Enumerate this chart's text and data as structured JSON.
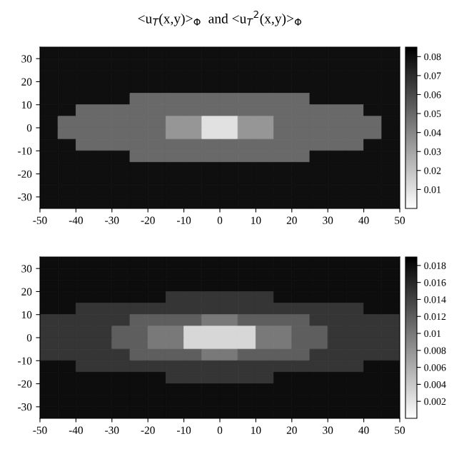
{
  "chart_data": [
    {
      "type": "heatmap",
      "title": "<u$_{T}$(x,y)>$_{Φ}$  and <u$_{T}$$^{2}$(x,y)>$_{Φ}$",
      "xlim": [
        -50,
        50
      ],
      "ylim": [
        -35,
        35
      ],
      "xticks": [
        -50,
        -40,
        -30,
        -20,
        -10,
        0,
        10,
        20,
        30,
        40,
        50
      ],
      "yticks": [
        -30,
        -20,
        -10,
        0,
        10,
        20,
        30
      ],
      "clim": [
        0,
        0.085
      ],
      "cticks": [
        0.01,
        0.02,
        0.03,
        0.04,
        0.05,
        0.06,
        0.07,
        0.08
      ],
      "cells": [
        [
          0.08,
          0.08,
          0.08,
          0.08,
          0.08,
          0.08,
          0.08,
          0.08,
          0.08,
          0.08,
          0.08,
          0.08,
          0.08,
          0.08,
          0.08,
          0.08,
          0.08,
          0.08,
          0.08,
          0.08
        ],
        [
          0.08,
          0.08,
          0.08,
          0.08,
          0.08,
          0.08,
          0.08,
          0.08,
          0.08,
          0.08,
          0.08,
          0.08,
          0.08,
          0.08,
          0.08,
          0.08,
          0.08,
          0.08,
          0.08,
          0.08
        ],
        [
          0.08,
          0.08,
          0.08,
          0.08,
          0.08,
          0.08,
          0.08,
          0.08,
          0.08,
          0.08,
          0.08,
          0.08,
          0.08,
          0.08,
          0.08,
          0.08,
          0.08,
          0.08,
          0.08,
          0.08
        ],
        [
          0.08,
          0.08,
          0.08,
          0.08,
          0.08,
          0.08,
          0.08,
          0.08,
          0.08,
          0.08,
          0.08,
          0.08,
          0.08,
          0.08,
          0.08,
          0.08,
          0.08,
          0.08,
          0.08,
          0.08
        ],
        [
          0.08,
          0.08,
          0.08,
          0.08,
          0.08,
          0.05,
          0.05,
          0.05,
          0.05,
          0.05,
          0.05,
          0.05,
          0.05,
          0.05,
          0.05,
          0.08,
          0.08,
          0.08,
          0.08,
          0.08
        ],
        [
          0.08,
          0.08,
          0.05,
          0.05,
          0.05,
          0.05,
          0.05,
          0.05,
          0.05,
          0.05,
          0.05,
          0.05,
          0.05,
          0.05,
          0.05,
          0.05,
          0.05,
          0.05,
          0.08,
          0.08
        ],
        [
          0.08,
          0.05,
          0.05,
          0.05,
          0.05,
          0.05,
          0.05,
          0.035,
          0.035,
          0.01,
          0.01,
          0.035,
          0.035,
          0.05,
          0.05,
          0.05,
          0.05,
          0.05,
          0.05,
          0.08
        ],
        [
          0.08,
          0.05,
          0.05,
          0.05,
          0.05,
          0.05,
          0.05,
          0.035,
          0.035,
          0.01,
          0.01,
          0.035,
          0.035,
          0.05,
          0.05,
          0.05,
          0.05,
          0.05,
          0.05,
          0.08
        ],
        [
          0.08,
          0.08,
          0.05,
          0.05,
          0.05,
          0.05,
          0.05,
          0.05,
          0.05,
          0.05,
          0.05,
          0.05,
          0.05,
          0.05,
          0.05,
          0.05,
          0.05,
          0.05,
          0.08,
          0.08
        ],
        [
          0.08,
          0.08,
          0.08,
          0.08,
          0.08,
          0.05,
          0.05,
          0.05,
          0.05,
          0.05,
          0.05,
          0.05,
          0.05,
          0.05,
          0.05,
          0.08,
          0.08,
          0.08,
          0.08,
          0.08
        ],
        [
          0.08,
          0.08,
          0.08,
          0.08,
          0.08,
          0.08,
          0.08,
          0.08,
          0.08,
          0.08,
          0.08,
          0.08,
          0.08,
          0.08,
          0.08,
          0.08,
          0.08,
          0.08,
          0.08,
          0.08
        ],
        [
          0.08,
          0.08,
          0.08,
          0.08,
          0.08,
          0.08,
          0.08,
          0.08,
          0.08,
          0.08,
          0.08,
          0.08,
          0.08,
          0.08,
          0.08,
          0.08,
          0.08,
          0.08,
          0.08,
          0.08
        ],
        [
          0.08,
          0.08,
          0.08,
          0.08,
          0.08,
          0.08,
          0.08,
          0.08,
          0.08,
          0.08,
          0.08,
          0.08,
          0.08,
          0.08,
          0.08,
          0.08,
          0.08,
          0.08,
          0.08,
          0.08
        ],
        [
          0.08,
          0.08,
          0.08,
          0.08,
          0.08,
          0.08,
          0.08,
          0.08,
          0.08,
          0.08,
          0.08,
          0.08,
          0.08,
          0.08,
          0.08,
          0.08,
          0.08,
          0.08,
          0.08,
          0.08
        ]
      ]
    },
    {
      "type": "heatmap",
      "xlim": [
        -50,
        50
      ],
      "ylim": [
        -35,
        35
      ],
      "xticks": [
        -50,
        -40,
        -30,
        -20,
        -10,
        0,
        10,
        20,
        30,
        40,
        50
      ],
      "yticks": [
        -30,
        -20,
        -10,
        0,
        10,
        20,
        30
      ],
      "clim": [
        0,
        0.019
      ],
      "cticks": [
        0.002,
        0.004,
        0.006,
        0.008,
        0.01,
        0.012,
        0.014,
        0.016,
        0.018
      ],
      "cells": [
        [
          0.018,
          0.018,
          0.018,
          0.018,
          0.018,
          0.018,
          0.018,
          0.018,
          0.018,
          0.018,
          0.018,
          0.018,
          0.018,
          0.018,
          0.018,
          0.018,
          0.018,
          0.018,
          0.018,
          0.018
        ],
        [
          0.018,
          0.018,
          0.018,
          0.018,
          0.018,
          0.018,
          0.018,
          0.018,
          0.018,
          0.018,
          0.018,
          0.018,
          0.018,
          0.018,
          0.018,
          0.018,
          0.018,
          0.018,
          0.018,
          0.018
        ],
        [
          0.018,
          0.018,
          0.018,
          0.018,
          0.018,
          0.018,
          0.018,
          0.018,
          0.018,
          0.018,
          0.018,
          0.018,
          0.018,
          0.018,
          0.018,
          0.018,
          0.018,
          0.018,
          0.018,
          0.018
        ],
        [
          0.018,
          0.018,
          0.018,
          0.018,
          0.018,
          0.018,
          0.018,
          0.015,
          0.015,
          0.015,
          0.015,
          0.015,
          0.015,
          0.018,
          0.018,
          0.018,
          0.018,
          0.018,
          0.018,
          0.018
        ],
        [
          0.018,
          0.018,
          0.015,
          0.015,
          0.015,
          0.015,
          0.015,
          0.015,
          0.015,
          0.015,
          0.015,
          0.015,
          0.015,
          0.015,
          0.015,
          0.015,
          0.015,
          0.015,
          0.018,
          0.018
        ],
        [
          0.015,
          0.015,
          0.015,
          0.015,
          0.015,
          0.012,
          0.012,
          0.012,
          0.012,
          0.01,
          0.01,
          0.012,
          0.012,
          0.012,
          0.012,
          0.015,
          0.015,
          0.015,
          0.015,
          0.015
        ],
        [
          0.015,
          0.015,
          0.015,
          0.015,
          0.012,
          0.012,
          0.01,
          0.01,
          0.003,
          0.003,
          0.003,
          0.003,
          0.01,
          0.01,
          0.012,
          0.012,
          0.015,
          0.015,
          0.015,
          0.015
        ],
        [
          0.015,
          0.015,
          0.015,
          0.015,
          0.012,
          0.012,
          0.01,
          0.01,
          0.003,
          0.003,
          0.003,
          0.003,
          0.01,
          0.01,
          0.012,
          0.012,
          0.015,
          0.015,
          0.015,
          0.015
        ],
        [
          0.015,
          0.015,
          0.015,
          0.015,
          0.015,
          0.012,
          0.012,
          0.012,
          0.012,
          0.01,
          0.01,
          0.012,
          0.012,
          0.012,
          0.012,
          0.015,
          0.015,
          0.015,
          0.015,
          0.015
        ],
        [
          0.018,
          0.018,
          0.015,
          0.015,
          0.015,
          0.015,
          0.015,
          0.015,
          0.015,
          0.015,
          0.015,
          0.015,
          0.015,
          0.015,
          0.015,
          0.015,
          0.015,
          0.015,
          0.018,
          0.018
        ],
        [
          0.018,
          0.018,
          0.018,
          0.018,
          0.018,
          0.018,
          0.018,
          0.015,
          0.015,
          0.015,
          0.015,
          0.015,
          0.015,
          0.018,
          0.018,
          0.018,
          0.018,
          0.018,
          0.018,
          0.018
        ],
        [
          0.018,
          0.018,
          0.018,
          0.018,
          0.018,
          0.018,
          0.018,
          0.018,
          0.018,
          0.018,
          0.018,
          0.018,
          0.018,
          0.018,
          0.018,
          0.018,
          0.018,
          0.018,
          0.018,
          0.018
        ],
        [
          0.018,
          0.018,
          0.018,
          0.018,
          0.018,
          0.018,
          0.018,
          0.018,
          0.018,
          0.018,
          0.018,
          0.018,
          0.018,
          0.018,
          0.018,
          0.018,
          0.018,
          0.018,
          0.018,
          0.018
        ],
        [
          0.018,
          0.018,
          0.018,
          0.018,
          0.018,
          0.018,
          0.018,
          0.018,
          0.018,
          0.018,
          0.018,
          0.018,
          0.018,
          0.018,
          0.018,
          0.018,
          0.018,
          0.018,
          0.018,
          0.018
        ]
      ]
    }
  ]
}
